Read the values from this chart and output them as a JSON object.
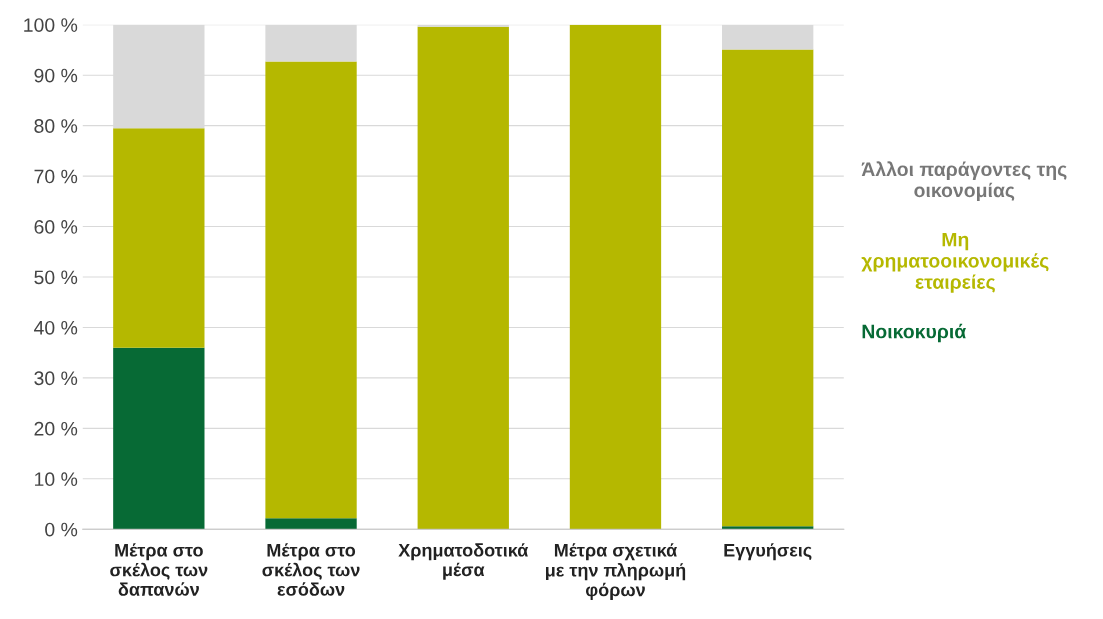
{
  "chart_data": {
    "type": "bar",
    "stacked": true,
    "categories": [
      "Μέτρα στο\nσκέλος των\nδαπανών",
      "Μέτρα στο\nσκέλος των\nεσόδων",
      "Χρηματοδοτικά\nμέσα",
      "Μέτρα σχετικά\nμε την πληρωμή\nφόρων",
      "Εγγυήσεις"
    ],
    "series": [
      {
        "name": "Νοικοκυριά",
        "color": "#076a35",
        "values": [
          36,
          2.2,
          0,
          0,
          0.6
        ]
      },
      {
        "name": "Μη\nχρηματοοικονομικές\nεταιρείες",
        "color": "#b5b800",
        "values": [
          43.5,
          90.5,
          99.6,
          100,
          94.5
        ]
      },
      {
        "name": "Άλλοι παράγοντες της\nοικονομίας",
        "color": "#d9d9d9",
        "values": [
          20.5,
          7.3,
          0.4,
          0,
          4.9
        ]
      }
    ],
    "ylim": [
      0,
      100
    ],
    "yticks": [
      {
        "value": 0,
        "label": "0 %"
      },
      {
        "value": 10,
        "label": "10 %"
      },
      {
        "value": 20,
        "label": "20 %"
      },
      {
        "value": 30,
        "label": "30 %"
      },
      {
        "value": 40,
        "label": "40 %"
      },
      {
        "value": 50,
        "label": "50 %"
      },
      {
        "value": 60,
        "label": "60 %"
      },
      {
        "value": 70,
        "label": "70 %"
      },
      {
        "value": 80,
        "label": "80 %"
      },
      {
        "value": 90,
        "label": "90 %"
      },
      {
        "value": 100,
        "label": "100 %"
      }
    ],
    "grid": "y",
    "legend": "right"
  }
}
